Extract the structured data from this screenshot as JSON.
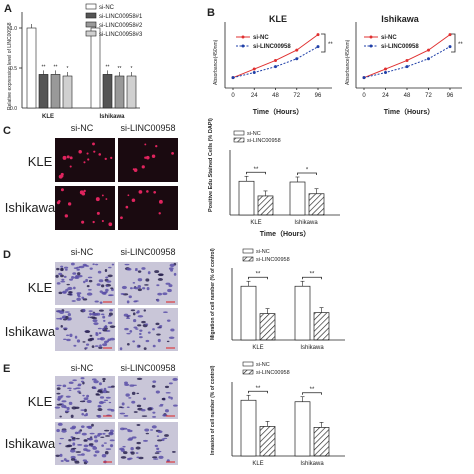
{
  "panel_letters": [
    "A",
    "B",
    "C",
    "D",
    "E"
  ],
  "micrographs": {
    "col_labels": [
      "si-NC",
      "si-LINC00958"
    ],
    "row_labels": [
      "KLE",
      "Ishikawa"
    ],
    "colors": {
      "fluorescence_bg": "#1a0a10",
      "fluorescence_dot": "#e0245e",
      "stain_bg": "#c9c6d8",
      "stain_cell": "#5b4fa8",
      "stain_dark": "#2a2350"
    }
  },
  "chart_data": [
    {
      "id": "A",
      "type": "bar",
      "ylabel": "Relative expression level of LINC00958",
      "categories": [
        "KLE",
        "Ishikawa"
      ],
      "series": [
        {
          "name": "si-NC",
          "values": [
            1.0,
            1.0
          ],
          "color": "#ffffff"
        },
        {
          "name": "si-LINC00958#1",
          "values": [
            0.42,
            0.42
          ],
          "color": "#555555"
        },
        {
          "name": "si-LINC00958#2",
          "values": [
            0.42,
            0.4
          ],
          "color": "#999999"
        },
        {
          "name": "si-LINC00958#3",
          "values": [
            0.4,
            0.4
          ],
          "color": "#d0d0d0"
        }
      ],
      "sig": [
        "**",
        "**",
        "*"
      ],
      "ylim": [
        0,
        1.2
      ]
    },
    {
      "id": "B1",
      "type": "line",
      "title": "KLE",
      "ylabel": "Absorbance(450nm)",
      "xlabel": "Time（Hours）",
      "x": [
        0,
        24,
        48,
        72,
        96
      ],
      "series": [
        {
          "name": "si-NC",
          "values": [
            0.3,
            0.55,
            0.8,
            1.1,
            1.55
          ],
          "color": "#e03030"
        },
        {
          "name": "si-LINC00958",
          "values": [
            0.3,
            0.45,
            0.62,
            0.85,
            1.2
          ],
          "color": "#1f3fa8"
        }
      ],
      "sig": "**",
      "ylim": [
        0,
        1.8
      ]
    },
    {
      "id": "B2",
      "type": "line",
      "title": "Ishikawa",
      "ylabel": "Absorbance(450nm)",
      "xlabel": "Time（Hours）",
      "x": [
        0,
        24,
        48,
        72,
        96
      ],
      "series": [
        {
          "name": "si-NC",
          "values": [
            0.3,
            0.55,
            0.8,
            1.1,
            1.55
          ],
          "color": "#e03030"
        },
        {
          "name": "si-LINC00958",
          "values": [
            0.3,
            0.45,
            0.62,
            0.85,
            1.2
          ],
          "color": "#1f3fa8"
        }
      ],
      "sig": "**",
      "ylim": [
        0,
        1.8
      ]
    },
    {
      "id": "C",
      "type": "bar",
      "ylabel": "Positive Edu Stained Cells (% DAPI)",
      "xlabel": "Time（Hours）",
      "categories": [
        "KLE",
        "Ishikawa"
      ],
      "series": [
        {
          "name": "si-NC",
          "values": [
            0.92,
            0.9
          ]
        },
        {
          "name": "si-LINC00958",
          "values": [
            0.52,
            0.58
          ]
        }
      ],
      "sig": [
        "**",
        "*"
      ],
      "ylim": [
        0,
        1.5
      ]
    },
    {
      "id": "D",
      "type": "bar",
      "ylabel": "Migration of cell number (% of control)",
      "categories": [
        "KLE",
        "Ishikawa"
      ],
      "series": [
        {
          "name": "si-NC",
          "values": [
            112,
            112
          ]
        },
        {
          "name": "si-LINC00958",
          "values": [
            55,
            57
          ]
        }
      ],
      "sig": [
        "**",
        "**"
      ],
      "ylim": [
        0,
        150
      ]
    },
    {
      "id": "E",
      "type": "bar",
      "ylabel": "Invasion of cell number (% of control)",
      "categories": [
        "KLE",
        "Ishikawa"
      ],
      "series": [
        {
          "name": "si-NC",
          "values": [
            113,
            110
          ]
        },
        {
          "name": "si-LINC00958",
          "values": [
            60,
            58
          ]
        }
      ],
      "sig": [
        "**",
        "**"
      ],
      "ylim": [
        0,
        150
      ]
    }
  ]
}
